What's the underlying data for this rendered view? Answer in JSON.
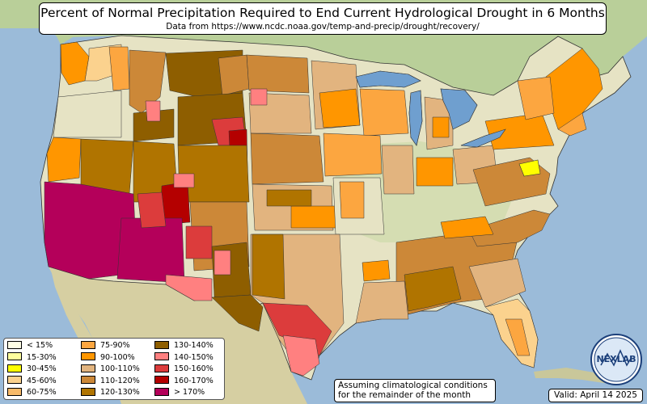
{
  "title": "Percent of Normal Precipitation Required to End Current Hydrological Drought in 6 Months",
  "subtitle": "Data from https://www.ncdc.noaa.gov/temp-and-precip/drought/recovery/",
  "legend": {
    "items": [
      {
        "label": "< 15%",
        "color": "#ffffe6"
      },
      {
        "label": "15-30%",
        "color": "#ffff9e"
      },
      {
        "label": "30-45%",
        "color": "#ffff00"
      },
      {
        "label": "45-60%",
        "color": "#fbd28e"
      },
      {
        "label": "60-75%",
        "color": "#f7ba6a"
      },
      {
        "label": "75-90%",
        "color": "#fca640"
      },
      {
        "label": "90-100%",
        "color": "#ff9600"
      },
      {
        "label": "100-110%",
        "color": "#e2b47f"
      },
      {
        "label": "110-120%",
        "color": "#cc8838"
      },
      {
        "label": "120-130%",
        "color": "#b07400"
      },
      {
        "label": "130-140%",
        "color": "#8e5e00"
      },
      {
        "label": "140-150%",
        "color": "#ff8080"
      },
      {
        "label": "150-160%",
        "color": "#dc3c3c"
      },
      {
        "label": "160-170%",
        "color": "#b40000"
      },
      {
        "label": "> 170%",
        "color": "#b4005a"
      }
    ]
  },
  "note": {
    "line1": "Assuming climatological conditions",
    "line2": "for the remainder of the month"
  },
  "valid": "Valid: April 14 2025",
  "logo_text": "NEXLAB",
  "colors": {
    "ocean": "#9bbbd9",
    "land": "#e8e6c8",
    "land_green": "#c6d8a4",
    "lakes": "#6f9fcf"
  }
}
